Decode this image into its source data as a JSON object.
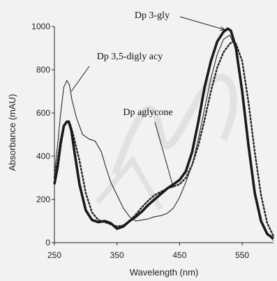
{
  "chart_data": {
    "type": "line",
    "xlabel": "Wavelength (nm)",
    "ylabel": "Absorbance (mAU)",
    "xlim": [
      250,
      600
    ],
    "ylim": [
      0,
      1000
    ],
    "x_ticks": [
      "250",
      "350",
      "450",
      "550"
    ],
    "y_ticks": [
      "0",
      "200",
      "400",
      "600",
      "800",
      "1000"
    ],
    "grid": false,
    "legend": "none (series identified by callout labels)",
    "series": [
      {
        "name": "Dp 3-gly",
        "line_style": "thick-solid",
        "x": [
          250,
          255,
          260,
          265,
          270,
          273,
          277,
          282,
          290,
          300,
          310,
          320,
          330,
          340,
          350,
          360,
          370,
          380,
          390,
          400,
          410,
          420,
          430,
          440,
          450,
          460,
          470,
          480,
          490,
          500,
          510,
          520,
          527,
          532,
          540,
          550,
          560,
          570,
          580,
          590,
          600
        ],
        "y": [
          270,
          350,
          460,
          540,
          560,
          560,
          520,
          420,
          270,
          150,
          105,
          95,
          100,
          90,
          65,
          75,
          100,
          120,
          145,
          175,
          200,
          225,
          250,
          270,
          290,
          330,
          420,
          560,
          720,
          840,
          930,
          975,
          990,
          980,
          900,
          700,
          450,
          230,
          100,
          40,
          20
        ]
      },
      {
        "name": "Dp 3,5-digly acy",
        "line_style": "thin-solid",
        "x": [
          250,
          255,
          260,
          265,
          270,
          274,
          278,
          285,
          295,
          305,
          315,
          325,
          332,
          340,
          350,
          360,
          370,
          380,
          390,
          400,
          410,
          420,
          430,
          440,
          450,
          460,
          470,
          480,
          490,
          500,
          510,
          520,
          530,
          540,
          550,
          560,
          570,
          580,
          590,
          600
        ],
        "y": [
          320,
          450,
          600,
          720,
          750,
          730,
          660,
          580,
          500,
          480,
          470,
          420,
          350,
          280,
          220,
          160,
          120,
          100,
          105,
          110,
          120,
          125,
          135,
          160,
          210,
          280,
          360,
          480,
          620,
          760,
          870,
          940,
          960,
          900,
          720,
          480,
          250,
          100,
          40,
          10
        ]
      },
      {
        "name": "Dp aglycone",
        "line_style": "dotted",
        "x": [
          250,
          255,
          260,
          265,
          270,
          275,
          280,
          290,
          300,
          310,
          320,
          330,
          340,
          350,
          360,
          370,
          380,
          390,
          400,
          410,
          420,
          430,
          440,
          450,
          460,
          470,
          480,
          490,
          500,
          510,
          520,
          530,
          535,
          540,
          550,
          560,
          570,
          580,
          590,
          600
        ],
        "y": [
          300,
          380,
          480,
          540,
          560,
          550,
          500,
          380,
          230,
          140,
          105,
          95,
          85,
          75,
          80,
          100,
          130,
          165,
          195,
          220,
          235,
          250,
          260,
          270,
          300,
          360,
          450,
          570,
          700,
          810,
          880,
          920,
          930,
          920,
          840,
          650,
          420,
          220,
          90,
          30
        ]
      }
    ],
    "annotations": [
      {
        "text": "Dp 3-gly",
        "series": 0
      },
      {
        "text": "Dp 3,5-digly acy",
        "series": 1
      },
      {
        "text": "Dp aglycone",
        "series": 2
      }
    ]
  }
}
